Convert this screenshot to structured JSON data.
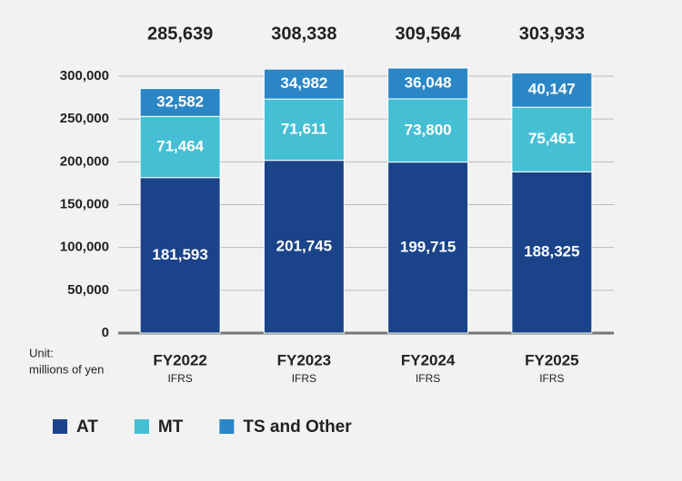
{
  "chart_data": {
    "type": "stacked_bar",
    "categories": [
      "FY2022",
      "FY2023",
      "FY2024",
      "FY2025"
    ],
    "category_notes": [
      "IFRS",
      "IFRS",
      "IFRS",
      "IFRS"
    ],
    "totals": [
      285639,
      308338,
      309564,
      303933
    ],
    "total_labels": [
      "285,639",
      "308,338",
      "309,564",
      "303,933"
    ],
    "unit_label": [
      "Unit:",
      "millions of yen"
    ],
    "series": [
      {
        "name": "AT",
        "color": "#1a4389",
        "values": [
          181593,
          201745,
          199715,
          188325
        ],
        "value_labels": [
          "181,593",
          "201,745",
          "199,715",
          "188,325"
        ]
      },
      {
        "name": "MT",
        "color": "#44bfd4",
        "values": [
          71464,
          71611,
          73800,
          75461
        ],
        "value_labels": [
          "71,464",
          "71,611",
          "73,800",
          "75,461"
        ]
      },
      {
        "name": "TS and Other",
        "color": "#2b86c5",
        "values": [
          32582,
          34982,
          36048,
          40147
        ],
        "value_labels": [
          "32,582",
          "34,982",
          "36,048",
          "40,147"
        ]
      }
    ],
    "ylim": [
      0,
      300000
    ],
    "yticks": [
      0,
      {
        "value": 50000,
        "label": "50,000"
      },
      {
        "value": 100000,
        "label": "100,000"
      },
      {
        "value": 150000,
        "label": "150,000"
      },
      {
        "value": 200000,
        "label": "200,000"
      },
      {
        "value": 250000,
        "label": "250,000"
      },
      {
        "value": 300000,
        "label": "300,000"
      }
    ],
    "grid": true
  }
}
